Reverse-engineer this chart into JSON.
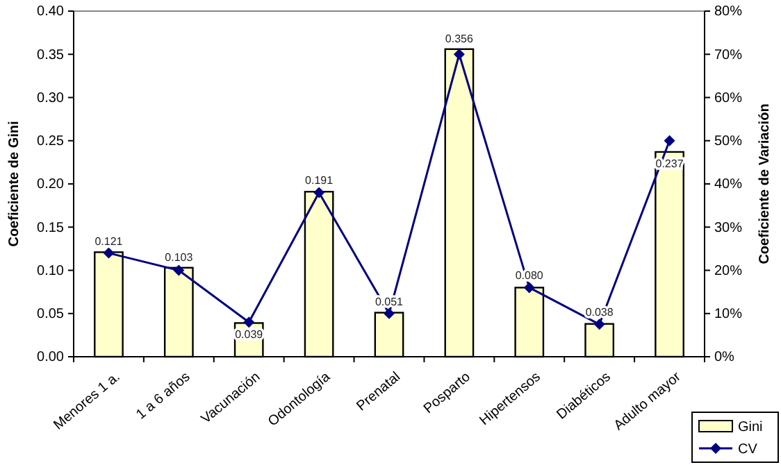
{
  "chart_data": {
    "type": "bar",
    "ylabel": "Coeficiente de Gini",
    "y2label": "Coeficiente de Variación",
    "categories": [
      "Menores 1 a.",
      "1 a 6 años",
      "Vacunación",
      "Odontología",
      "Prenatal",
      "Posparto",
      "Hipertensos",
      "Diabéticos",
      "Adulto mayor"
    ],
    "series": [
      {
        "name": "Gini",
        "color": "#ffffcc",
        "values": [
          0.121,
          0.103,
          0.039,
          0.191,
          0.051,
          0.356,
          0.08,
          0.038,
          0.237
        ],
        "value_labels": [
          "0.121",
          "0.103",
          "0.039",
          "0.191",
          "0.051",
          "0.356",
          "0.080",
          "0.038",
          "0.237"
        ]
      },
      {
        "name": "CV",
        "type": "line",
        "axis": "y2",
        "color": "#000080",
        "marker": "diamond",
        "values": [
          24,
          20,
          8,
          38,
          10,
          70,
          16,
          7.5,
          50
        ]
      }
    ],
    "ylim": [
      0,
      0.4
    ],
    "yticks": [
      {
        "value": 0,
        "label": "0.00"
      },
      {
        "value": 0.05,
        "label": "0.05"
      },
      {
        "value": 0.1,
        "label": "0.10"
      },
      {
        "value": 0.15,
        "label": "0.15"
      },
      {
        "value": 0.2,
        "label": "0.20"
      },
      {
        "value": 0.25,
        "label": "0.25"
      },
      {
        "value": 0.3,
        "label": "0.30"
      },
      {
        "value": 0.35,
        "label": "0.35"
      },
      {
        "value": 0.4,
        "label": "0.40"
      }
    ],
    "y2lim": [
      0,
      80
    ],
    "y2ticks": [
      {
        "value": 0,
        "label": "0%"
      },
      {
        "value": 10,
        "label": "10%"
      },
      {
        "value": 20,
        "label": "20%"
      },
      {
        "value": 30,
        "label": "30%"
      },
      {
        "value": 40,
        "label": "40%"
      },
      {
        "value": 50,
        "label": "50%"
      },
      {
        "value": 60,
        "label": "60%"
      },
      {
        "value": 70,
        "label": "70%"
      },
      {
        "value": 80,
        "label": "80%"
      }
    ],
    "legend": "bottom right",
    "grid": false
  }
}
